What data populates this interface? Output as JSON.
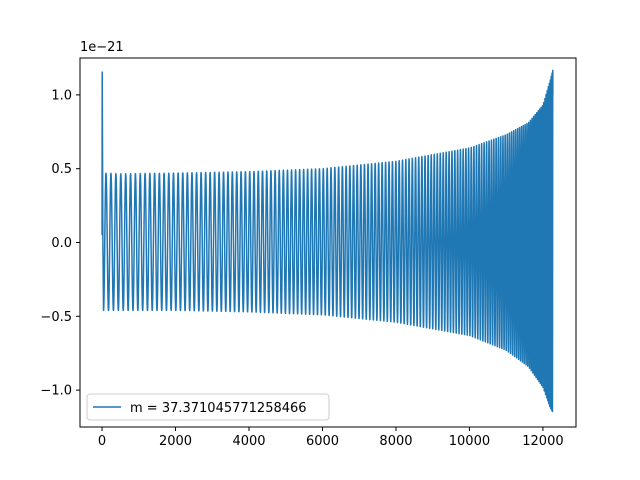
{
  "chart_data": {
    "type": "line",
    "title": "",
    "xlabel": "",
    "ylabel": "",
    "y_offset_label": "1e−21",
    "xlim": [
      -600,
      12900
    ],
    "ylim": [
      -1.25,
      1.25
    ],
    "x_ticks": [
      0,
      2000,
      4000,
      6000,
      8000,
      10000,
      12000
    ],
    "x_tick_labels": [
      "0",
      "2000",
      "4000",
      "6000",
      "8000",
      "10000",
      "12000"
    ],
    "y_ticks": [
      -1.0,
      -0.5,
      0.0,
      0.5,
      1.0
    ],
    "y_tick_labels": [
      "−1.0",
      "−0.5",
      "0.0",
      "0.5",
      "1.0"
    ],
    "grid": false,
    "legend_placement": "lower-left",
    "series": [
      {
        "name": "m = 37.371045771258466",
        "color": "#1f77b4",
        "x_range": [
          0,
          12270
        ],
        "description_points": {
          "x": [
            0,
            5,
            40,
            500,
            2000,
            4000,
            6000,
            8000,
            10000,
            11000,
            11600,
            12000,
            12200,
            12270
          ],
          "envelope_upper": [
            0.05,
            1.17,
            0.47,
            0.465,
            0.47,
            0.48,
            0.5,
            0.55,
            0.64,
            0.73,
            0.81,
            0.93,
            1.1,
            1.17
          ],
          "envelope_lower": [
            0.05,
            0.04,
            -0.46,
            -0.46,
            -0.46,
            -0.47,
            -0.49,
            -0.54,
            -0.63,
            -0.73,
            -0.84,
            -0.98,
            -1.12,
            -1.15
          ]
        }
      }
    ]
  }
}
